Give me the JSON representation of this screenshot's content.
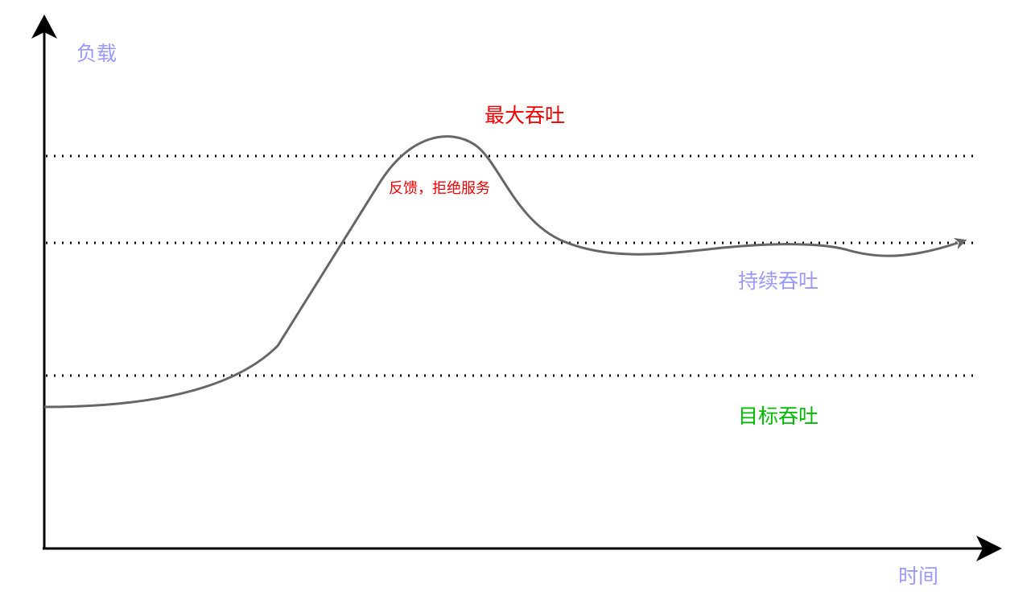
{
  "axes": {
    "y_label": "负载",
    "x_label": "时间"
  },
  "levels": {
    "max": "最大吞吐",
    "sustained": "持续吞吐",
    "target": "目标吞吐"
  },
  "annotation": "反馈，拒绝服务"
}
